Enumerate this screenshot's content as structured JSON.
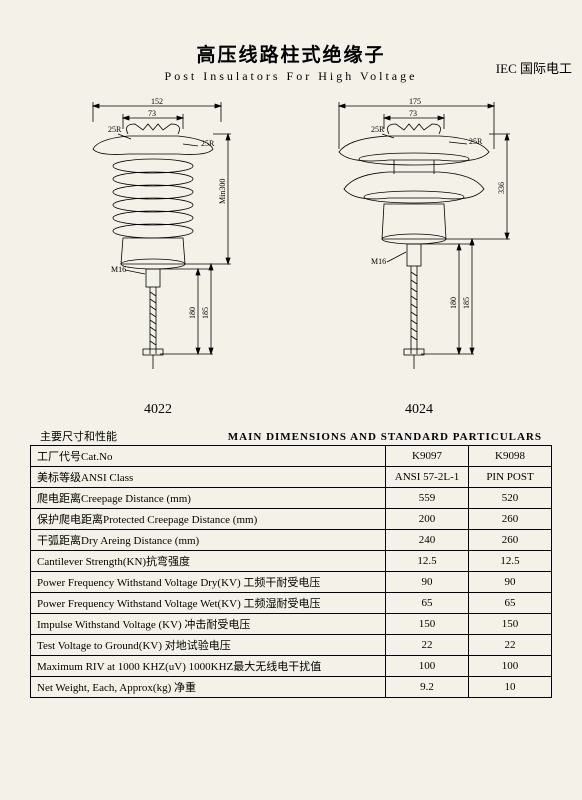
{
  "title_cn": "高压线路柱式绝缘子",
  "title_en": "Post Insulators For High Voltage",
  "iec_label": "IEC 国际电工",
  "fig_left": {
    "label": "4022",
    "dims": {
      "top_w": "152",
      "inner_w": "73",
      "r1": "25R",
      "r2": "25R",
      "h_main": "Min300",
      "thread": "M16",
      "h_pin1": "180",
      "h_pin2": "185"
    }
  },
  "fig_right": {
    "label": "4024",
    "dims": {
      "top_w": "175",
      "inner_w": "73",
      "r1": "25R",
      "r2": "25R",
      "h_main": "336",
      "thread": "M16",
      "h_pin1": "180",
      "h_pin2": "185"
    }
  },
  "caption_cn": "主要尺寸和性能",
  "caption_en": "MAIN DIMENSIONS AND STANDARD PARTICULARS",
  "table": {
    "headers": [
      "工厂代号Cat.No",
      "K9097",
      "K9098"
    ],
    "rows": [
      [
        "美标等级ANSI Class",
        "ANSI 57-2L-1",
        "PIN POST"
      ],
      [
        "爬电距离Creepage Distance (mm)",
        "559",
        "520"
      ],
      [
        "保护爬电距离Protected Creepage Distance (mm)",
        "200",
        "260"
      ],
      [
        "干弧距离Dry Areing Distance (mm)",
        "240",
        "260"
      ],
      [
        "Cantilever Strength(KN)抗弯强度",
        "12.5",
        "12.5"
      ],
      [
        "Power  Frequency Withstand  Voltage  Dry(KV)  工频干耐受电压",
        "90",
        "90"
      ],
      [
        "Power  Frequency  Withstand Voltage  Wet(KV)  工频湿耐受电压",
        "65",
        "65"
      ],
      [
        "Impulse Withstand  Voltage (KV)  冲击耐受电压",
        "150",
        "150"
      ],
      [
        "Test Voltage  to  Ground(KV)  对地试验电压",
        "22",
        "22"
      ],
      [
        "Maximum  RIV  at  1000  KHZ(uV)  1000KHZ最大无线电干扰值",
        "100",
        "100"
      ],
      [
        "Net  Weight, Each, Approx(kg) 净重",
        "9.2",
        "10"
      ]
    ]
  },
  "svg_style": {
    "stroke": "#000",
    "fill": "none",
    "stroke_width": 0.8,
    "dim_fontsize": 8
  }
}
